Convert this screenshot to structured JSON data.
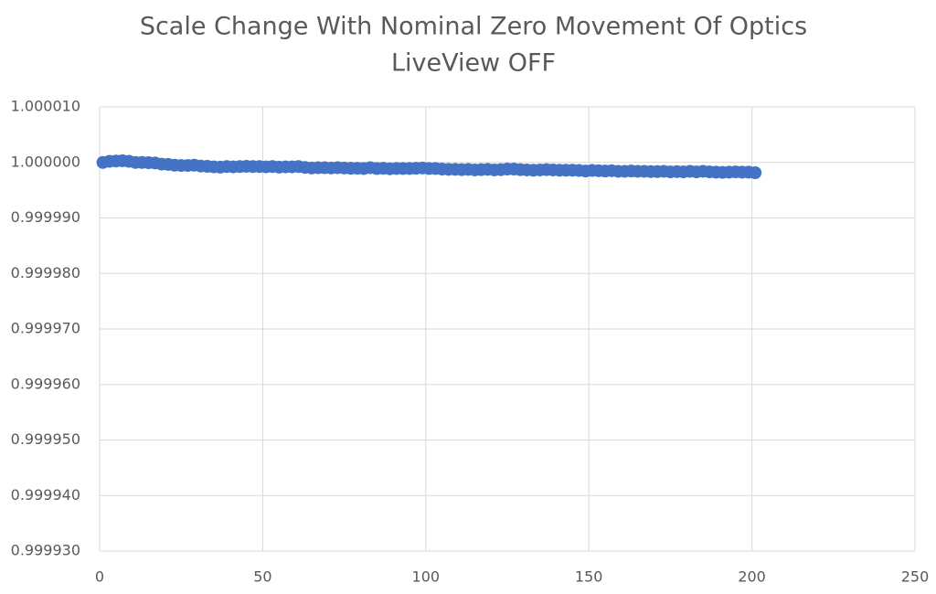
{
  "chart_data": {
    "type": "scatter",
    "title": "Scale Change With Nominal Zero Movement Of Optics",
    "subtitle": "LiveView OFF",
    "color": "#4472c4",
    "grid": true,
    "xlim": [
      0,
      250
    ],
    "xticks": [
      0,
      50,
      100,
      150,
      200,
      250
    ],
    "ylim": [
      0.99993,
      1.00001
    ],
    "yticks": [
      {
        "value": 0.99993,
        "label": "0.999930"
      },
      {
        "value": 0.99994,
        "label": "0.999940"
      },
      {
        "value": 0.99995,
        "label": "0.999950"
      },
      {
        "value": 0.99996,
        "label": "0.999960"
      },
      {
        "value": 0.99997,
        "label": "0.999970"
      },
      {
        "value": 0.99998,
        "label": "0.999980"
      },
      {
        "value": 0.99999,
        "label": "0.999990"
      },
      {
        "value": 1.0,
        "label": "1.000000"
      },
      {
        "value": 1.00001,
        "label": "1.000010"
      }
    ],
    "x": [
      1,
      3,
      5,
      7,
      9,
      11,
      13,
      15,
      17,
      19,
      21,
      23,
      25,
      27,
      29,
      31,
      33,
      35,
      37,
      39,
      41,
      43,
      45,
      47,
      49,
      51,
      53,
      55,
      57,
      59,
      61,
      63,
      65,
      67,
      69,
      71,
      73,
      75,
      77,
      79,
      81,
      83,
      85,
      87,
      89,
      91,
      93,
      95,
      97,
      99,
      101,
      103,
      105,
      107,
      109,
      111,
      113,
      115,
      117,
      119,
      121,
      123,
      125,
      127,
      129,
      131,
      133,
      135,
      137,
      139,
      141,
      143,
      145,
      147,
      149,
      151,
      153,
      155,
      157,
      159,
      161,
      163,
      165,
      167,
      169,
      171,
      173,
      175,
      177,
      179,
      181,
      183,
      185,
      187,
      189,
      191,
      193,
      195,
      197,
      199,
      201
    ],
    "values": [
      1.0,
      1.0000002,
      1.00000025,
      1.0000003,
      1.0000002,
      1.0,
      1.0,
      0.99999995,
      0.9999999,
      0.9999997,
      0.99999965,
      0.9999995,
      0.99999945,
      0.99999945,
      0.9999995,
      0.99999935,
      0.9999993,
      0.9999992,
      0.99999915,
      0.99999925,
      0.9999992,
      0.99999925,
      0.9999993,
      0.99999925,
      0.99999925,
      0.9999992,
      0.99999925,
      0.99999915,
      0.9999992,
      0.9999992,
      0.99999925,
      0.9999991,
      0.999999,
      0.99999905,
      0.99999905,
      0.999999,
      0.99999905,
      0.999999,
      0.99999895,
      0.99999895,
      0.9999989,
      0.99999905,
      0.9999989,
      0.99999895,
      0.99999885,
      0.9999989,
      0.9999989,
      0.9999989,
      0.99999895,
      0.999999,
      0.9999989,
      0.9999989,
      0.9999988,
      0.99999875,
      0.99999875,
      0.9999987,
      0.99999875,
      0.99999865,
      0.9999987,
      0.99999875,
      0.99999865,
      0.9999987,
      0.9999988,
      0.9999988,
      0.9999987,
      0.99999865,
      0.9999986,
      0.99999865,
      0.9999987,
      0.99999865,
      0.9999986,
      0.9999986,
      0.9999986,
      0.99999855,
      0.99999845,
      0.99999855,
      0.9999985,
      0.99999845,
      0.9999985,
      0.9999984,
      0.9999984,
      0.99999845,
      0.9999984,
      0.9999984,
      0.99999835,
      0.99999835,
      0.9999984,
      0.9999983,
      0.99999835,
      0.9999983,
      0.9999984,
      0.9999983,
      0.9999984,
      0.9999983,
      0.99999825,
      0.9999982,
      0.99999825,
      0.9999983,
      0.99999825,
      0.99999825,
      0.99999815
    ]
  }
}
